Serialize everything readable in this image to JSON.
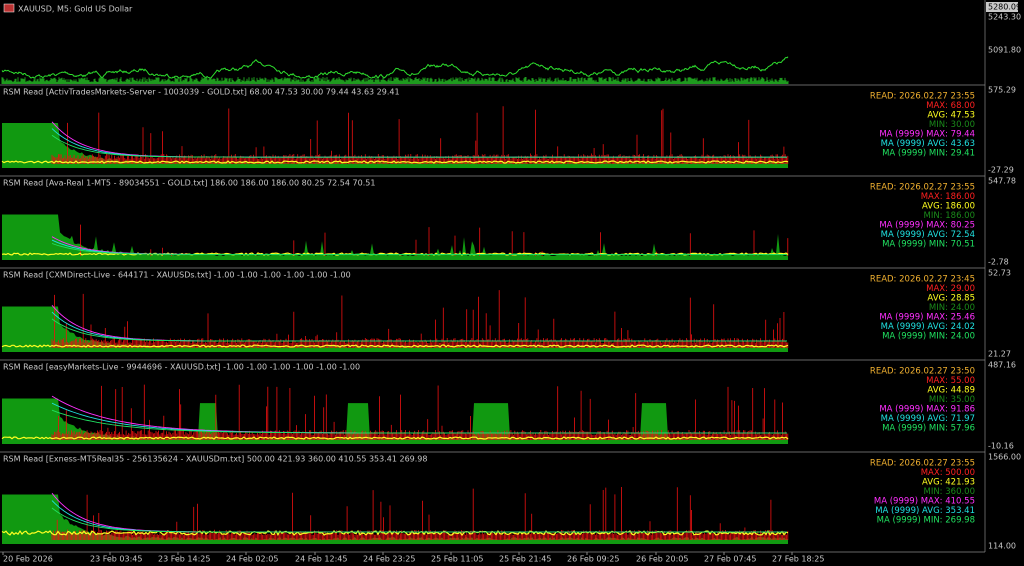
{
  "header": {
    "title": "XAUUSD, M5:  Gold US Dollar",
    "price_labels": [
      "5280.09",
      "5243.30",
      "5091.80"
    ]
  },
  "panels": [
    {
      "title": "RSM Read [ActivTradesMarkets-Server - 1003039 - GOLD.txt] 68.00 47.53 30.00 79.44 43.63 29.41",
      "axis_labels": [
        "575.29",
        "-27.29"
      ],
      "legend": [
        "READ: 2026.02.27 23:55",
        "MAX: 68.00",
        "AVG: 47.53",
        "MIN: 30.00",
        "MA (9999) MAX: 79.44",
        "MA (9999) AVG: 43.63",
        "MA (9999) MIN: 29.41"
      ]
    },
    {
      "title": "RSM Read [Ava-Real 1-MT5 - 89034551 - GOLD.txt] 186.00 186.00 186.00 80.25 72.54 70.51",
      "axis_labels": [
        "547.78",
        "-2.78"
      ],
      "legend": [
        "READ: 2026.02.27 23:55",
        "MAX: 186.00",
        "AVG: 186.00",
        "MIN: 186.00",
        "MA (9999) MAX: 80.25",
        "MA (9999) AVG: 72.54",
        "MA (9999) MIN: 70.51"
      ]
    },
    {
      "title": "RSM Read [CXMDirect-Live - 644171 - XAUUSDs.txt] -1.00 -1.00 -1.00 -1.00 -1.00 -1.00",
      "axis_labels": [
        "52.73",
        "21.27"
      ],
      "legend": [
        "READ: 2026.02.27 23:45",
        "MAX: 29.00",
        "AVG: 28.85",
        "MIN: 24.00",
        "MA (9999) MAX: 25.46",
        "MA (9999) AVG: 24.02",
        "MA (9999) MIN: 24.00"
      ]
    },
    {
      "title": "RSM Read [easyMarkets-Live - 9944696 - XAUUSD.txt] -1.00 -1.00 -1.00 -1.00 -1.00 -1.00",
      "axis_labels": [
        "487.16",
        "-10.16"
      ],
      "legend": [
        "READ: 2026.02.27 23:50",
        "MAX: 55.00",
        "AVG: 44.89",
        "MIN: 35.00",
        "MA (9999) MAX: 91.86",
        "MA (9999) AVG: 71.97",
        "MA (9999) MIN: 57.96"
      ]
    },
    {
      "title": "RSM Read [Exness-MT5Real35 - 256135624 - XAUUSDm.txt] 500.00 421.93 360.00 410.55 353.41 269.98",
      "axis_labels": [
        "1566.00",
        "114.00"
      ],
      "legend": [
        "READ: 2026.02.27 23:55",
        "MAX: 500.00",
        "AVG: 421.93",
        "MIN: 360.00",
        "MA (9999) MAX: 410.55",
        "MA (9999) AVG: 353.41",
        "MA (9999) MIN: 269.98"
      ]
    }
  ],
  "time_axis": [
    "20 Feb 2026",
    "23 Feb 03:45",
    "23 Feb 14:25",
    "24 Feb 02:05",
    "24 Feb 12:45",
    "24 Feb 23:25",
    "25 Feb 11:05",
    "25 Feb 21:45",
    "26 Feb 09:25",
    "26 Feb 20:05",
    "27 Feb 07:45",
    "27 Feb 18:25"
  ]
}
